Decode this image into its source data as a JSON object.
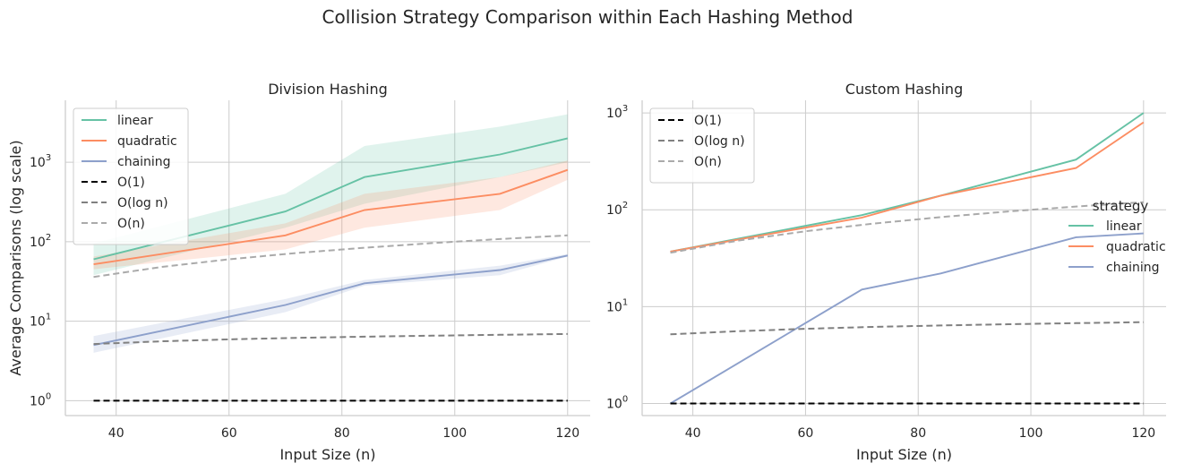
{
  "figure": {
    "title": "Collision Strategy Comparison within Each Hashing Method"
  },
  "colors": {
    "linear": "#66c2a5",
    "quadratic": "#fc8d62",
    "chaining": "#8da0cb",
    "o1": "#000000",
    "ologn": "#808080",
    "on": "#aaaaaa"
  },
  "chart_data": [
    {
      "type": "line",
      "title": "Division Hashing",
      "xlabel": "Input Size (n)",
      "ylabel": "Average Comparisons (log scale)",
      "yscale": "log",
      "xlim": [
        31,
        124
      ],
      "ylim": [
        0.65,
        6000
      ],
      "x_ticks": [
        40,
        60,
        80,
        100,
        120
      ],
      "y_ticks": [
        {
          "value": 1,
          "base": "10",
          "exp": "0"
        },
        {
          "value": 10,
          "base": "10",
          "exp": "1"
        },
        {
          "value": 100,
          "base": "10",
          "exp": "2"
        },
        {
          "value": 1000,
          "base": "10",
          "exp": "3"
        }
      ],
      "grid": true,
      "legend": {
        "placement": "upper-left",
        "title": ""
      },
      "series": [
        {
          "name": "linear",
          "color_key": "linear",
          "style": "solid",
          "x": [
            36,
            70,
            84,
            108,
            120
          ],
          "y": [
            60,
            240,
            650,
            1250,
            2000
          ],
          "band_low": [
            38,
            150,
            300,
            650,
            1000
          ],
          "band_high": [
            95,
            400,
            1600,
            2800,
            4000
          ]
        },
        {
          "name": "quadratic",
          "color_key": "quadratic",
          "style": "solid",
          "x": [
            36,
            70,
            84,
            108,
            120
          ],
          "y": [
            52,
            120,
            250,
            400,
            800
          ],
          "band_low": [
            45,
            80,
            150,
            250,
            600
          ],
          "band_high": [
            65,
            170,
            400,
            650,
            1050
          ]
        },
        {
          "name": "chaining",
          "color_key": "chaining",
          "style": "solid",
          "x": [
            36,
            70,
            84,
            108,
            120
          ],
          "y": [
            5,
            16,
            30,
            44,
            67
          ],
          "band_low": [
            4,
            13,
            28,
            38,
            65
          ],
          "band_high": [
            6.5,
            19,
            33,
            50,
            70
          ]
        },
        {
          "name": "O(1)",
          "color_key": "o1",
          "style": "dash",
          "x": [
            36,
            120
          ],
          "y": [
            1,
            1
          ]
        },
        {
          "name": "O(log n)",
          "color_key": "ologn",
          "style": "dash",
          "x": [
            36,
            48,
            60,
            72,
            84,
            96,
            108,
            120
          ],
          "y": [
            5.17,
            5.58,
            5.91,
            6.17,
            6.39,
            6.58,
            6.75,
            6.91
          ]
        },
        {
          "name": "O(n)",
          "color_key": "on",
          "style": "dash",
          "x": [
            36,
            48,
            60,
            72,
            84,
            96,
            108,
            120
          ],
          "y": [
            36,
            48,
            60,
            72,
            84,
            96,
            108,
            120
          ]
        }
      ]
    },
    {
      "type": "line",
      "title": "Custom Hashing",
      "xlabel": "Input Size (n)",
      "ylabel": "",
      "yscale": "log",
      "xlim": [
        31,
        124
      ],
      "ylim": [
        0.75,
        1350
      ],
      "x_ticks": [
        40,
        60,
        80,
        100,
        120
      ],
      "y_ticks": [
        {
          "value": 1,
          "base": "10",
          "exp": "0"
        },
        {
          "value": 10,
          "base": "10",
          "exp": "1"
        },
        {
          "value": 100,
          "base": "10",
          "exp": "2"
        },
        {
          "value": 1000,
          "base": "10",
          "exp": "3"
        }
      ],
      "grid": true,
      "legend": {
        "placement": "upper-left",
        "title": ""
      },
      "series": [
        {
          "name": "linear",
          "color_key": "linear",
          "style": "solid",
          "x": [
            36,
            70,
            84,
            108,
            120
          ],
          "y": [
            37,
            88,
            140,
            330,
            1000
          ]
        },
        {
          "name": "quadratic",
          "color_key": "quadratic",
          "style": "solid",
          "x": [
            36,
            70,
            84,
            108,
            120
          ],
          "y": [
            37,
            83,
            140,
            270,
            800
          ]
        },
        {
          "name": "chaining",
          "color_key": "chaining",
          "style": "solid",
          "x": [
            36,
            70,
            84,
            108,
            120
          ],
          "y": [
            1,
            15,
            22,
            52,
            57
          ]
        },
        {
          "name": "O(1)",
          "color_key": "o1",
          "style": "dash",
          "x": [
            36,
            120
          ],
          "y": [
            1,
            1
          ]
        },
        {
          "name": "O(log n)",
          "color_key": "ologn",
          "style": "dash",
          "x": [
            36,
            48,
            60,
            72,
            84,
            96,
            108,
            120
          ],
          "y": [
            5.17,
            5.58,
            5.91,
            6.17,
            6.39,
            6.58,
            6.75,
            6.91
          ]
        },
        {
          "name": "O(n)",
          "color_key": "on",
          "style": "dash",
          "x": [
            36,
            48,
            60,
            72,
            84,
            96,
            108,
            120
          ],
          "y": [
            36,
            48,
            60,
            72,
            84,
            96,
            108,
            120
          ]
        }
      ]
    }
  ],
  "strategy_legend": {
    "title": "strategy",
    "items": [
      {
        "label": "linear",
        "color_key": "linear"
      },
      {
        "label": "quadratic",
        "color_key": "quadratic"
      },
      {
        "label": "chaining",
        "color_key": "chaining"
      }
    ]
  }
}
